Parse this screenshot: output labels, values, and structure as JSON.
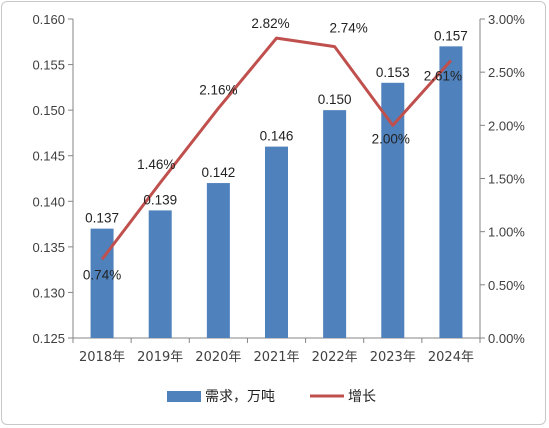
{
  "chart_data": {
    "type": "bar+line",
    "categories": [
      "2018年",
      "2019年",
      "2020年",
      "2021年",
      "2022年",
      "2023年",
      "2024年"
    ],
    "series": [
      {
        "name": "需求，万吨",
        "type": "bar",
        "axis": "left",
        "values": [
          0.137,
          0.139,
          0.142,
          0.146,
          0.15,
          0.153,
          0.157
        ],
        "labels": [
          "0.137",
          "0.139",
          "0.142",
          "0.146",
          "0.150",
          "0.153",
          "0.157"
        ],
        "color": "#4f81bd"
      },
      {
        "name": "增长",
        "type": "line",
        "axis": "right",
        "values": [
          0.74,
          1.46,
          2.16,
          2.82,
          2.74,
          2.0,
          2.61
        ],
        "labels": [
          "0.74%",
          "1.46%",
          "2.16%",
          "2.82%",
          "2.74%",
          "2.00%",
          "2.61%"
        ],
        "color": "#c0504d"
      }
    ],
    "y_left": {
      "min": 0.125,
      "max": 0.16,
      "ticks": [
        "0.125",
        "0.130",
        "0.135",
        "0.140",
        "0.145",
        "0.150",
        "0.155",
        "0.160"
      ]
    },
    "y_right": {
      "min": 0,
      "max": 3.0,
      "ticks": [
        "0.00%",
        "0.50%",
        "1.00%",
        "1.50%",
        "2.00%",
        "2.50%",
        "3.00%"
      ]
    },
    "grid": false,
    "legend_position": "bottom"
  }
}
